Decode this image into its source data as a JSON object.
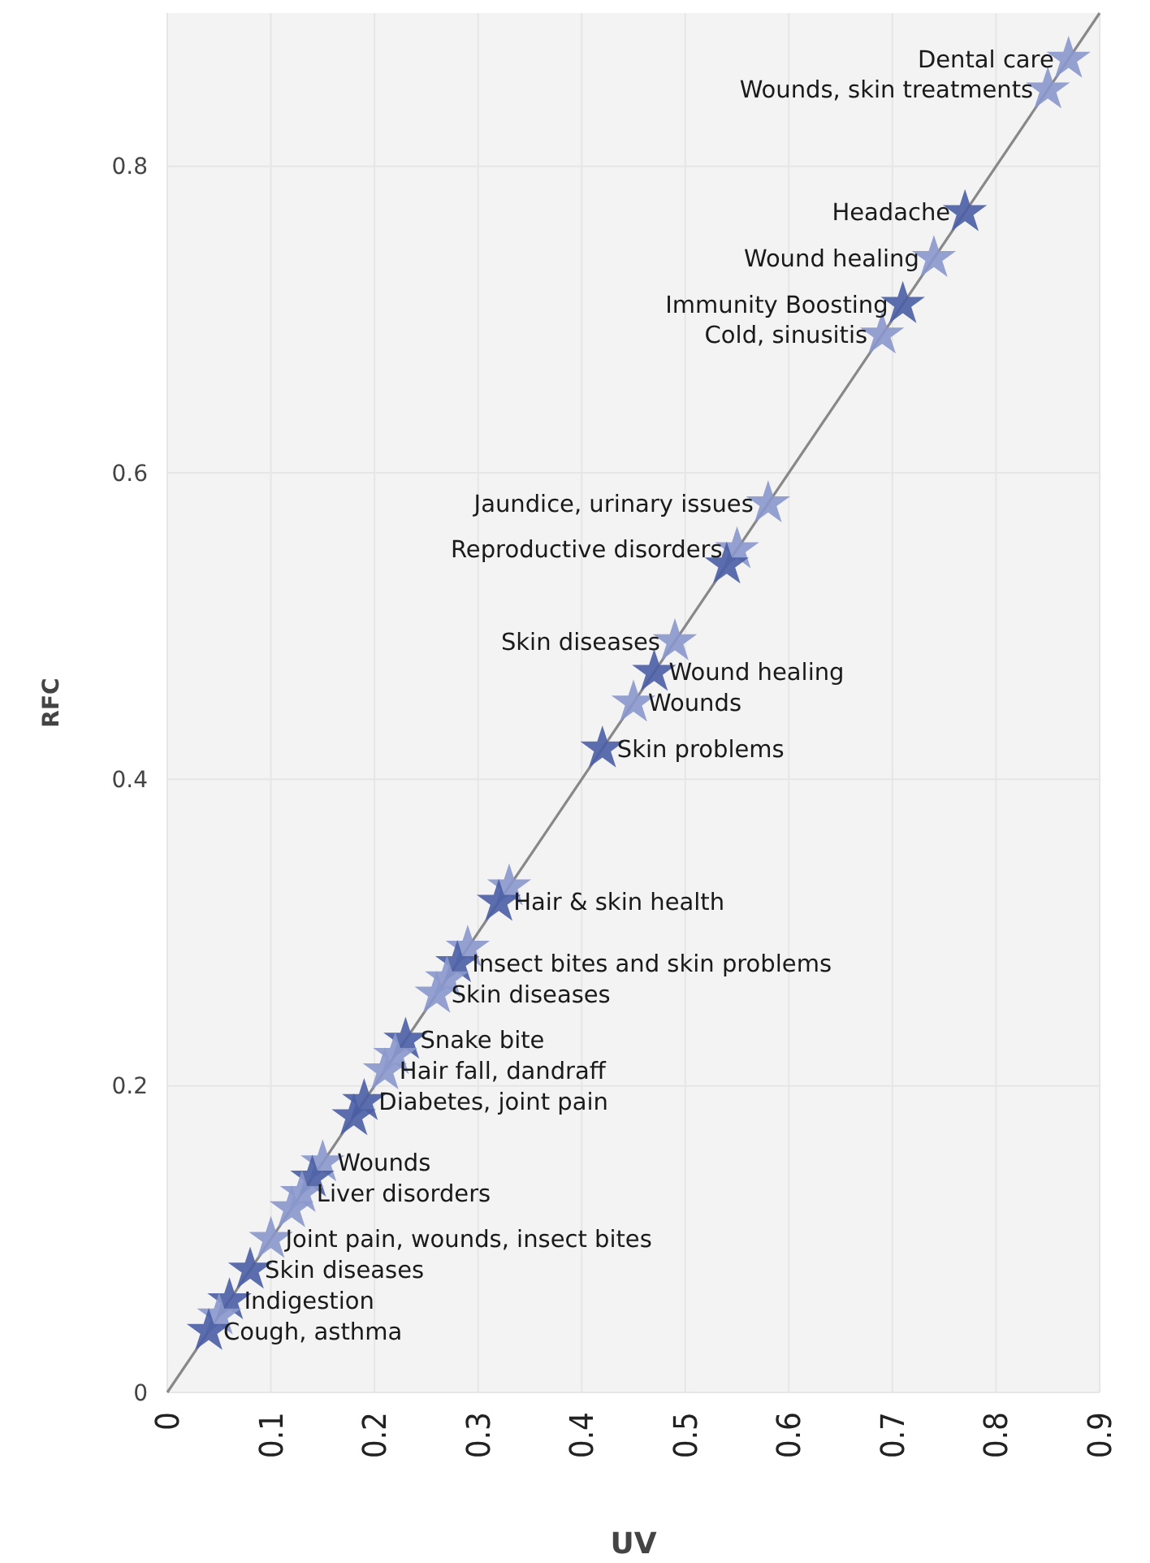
{
  "chart_data": {
    "type": "scatter",
    "xlabel": "UV",
    "ylabel": "RFC",
    "xlim": [
      0,
      0.9
    ],
    "ylim": [
      0,
      0.9
    ],
    "xticks": [
      0,
      0.1,
      0.2,
      0.3,
      0.4,
      0.5,
      0.6,
      0.7,
      0.8,
      0.9
    ],
    "yticks": [
      0,
      0.2,
      0.4,
      0.6,
      0.8
    ],
    "grid": true,
    "marker": "star",
    "series": [
      {
        "type": "line",
        "color": "#888888",
        "x": [
          0,
          0.9
        ],
        "values": [
          0,
          0.9
        ],
        "marker": "none",
        "line_style": "solid"
      },
      {
        "x": [
          0.87,
          0.85,
          0.77,
          0.74,
          0.71,
          0.69,
          0.58,
          0.55,
          0.54,
          0.49,
          0.47,
          0.45,
          0.42,
          0.33,
          0.32,
          0.29,
          0.28,
          0.27,
          0.26,
          0.23,
          0.22,
          0.21,
          0.19,
          0.18,
          0.15,
          0.14,
          0.13,
          0.12,
          0.1,
          0.08,
          0.06,
          0.05,
          0.04
        ],
        "values": [
          0.87,
          0.85,
          0.77,
          0.74,
          0.71,
          0.69,
          0.58,
          0.55,
          0.54,
          0.49,
          0.47,
          0.45,
          0.42,
          0.33,
          0.32,
          0.29,
          0.28,
          0.27,
          0.26,
          0.23,
          0.22,
          0.21,
          0.19,
          0.18,
          0.15,
          0.14,
          0.13,
          0.12,
          0.1,
          0.08,
          0.06,
          0.05,
          0.04
        ],
        "colors": [
          "#8a98cc",
          "#8a98cc",
          "#4a5ea4",
          "#8a98cc",
          "#4a5ea4",
          "#8a98cc",
          "#8a98cc",
          "#8a98cc",
          "#4a5ea4",
          "#8a98cc",
          "#4a5ea4",
          "#8a98cc",
          "#4a5ea4",
          "#8a98cc",
          "#4a5ea4",
          "#8a98cc",
          "#4a5ea4",
          "#8a98cc",
          "#8a98cc",
          "#4a5ea4",
          "#8a98cc",
          "#8a98cc",
          "#4a5ea4",
          "#4a5ea4",
          "#8a98cc",
          "#4a5ea4",
          "#8a98cc",
          "#8a98cc",
          "#8a98cc",
          "#4a5ea4",
          "#4a5ea4",
          "#8a98cc",
          "#4a5ea4"
        ]
      }
    ],
    "annotations": [
      {
        "text": "Dental care",
        "x": 0.87,
        "y": 0.87
      },
      {
        "text": "Wounds, skin treatments",
        "x": 0.85,
        "y": 0.85
      },
      {
        "text": "Headache",
        "x": 0.77,
        "y": 0.77
      },
      {
        "text": "Wound healing",
        "x": 0.74,
        "y": 0.74
      },
      {
        "text": "Immunity Boosting",
        "x": 0.71,
        "y": 0.71
      },
      {
        "text": "Cold, sinusitis",
        "x": 0.69,
        "y": 0.69
      },
      {
        "text": "Jaundice, urinary issues",
        "x": 0.58,
        "y": 0.58
      },
      {
        "text": "Reproductive disorders",
        "x": 0.55,
        "y": 0.55
      },
      {
        "text": "Skin diseases",
        "x": 0.49,
        "y": 0.49
      },
      {
        "text": "Wound healing",
        "x": 0.47,
        "y": 0.47
      },
      {
        "text": "Wounds",
        "x": 0.45,
        "y": 0.45
      },
      {
        "text": "Skin problems",
        "x": 0.42,
        "y": 0.42
      },
      {
        "text": "Hair & skin health",
        "x": 0.32,
        "y": 0.32
      },
      {
        "text": "Insect bites and skin problems",
        "x": 0.28,
        "y": 0.28
      },
      {
        "text": "Skin diseases",
        "x": 0.26,
        "y": 0.26
      },
      {
        "text": "Snake bite",
        "x": 0.23,
        "y": 0.23
      },
      {
        "text": "Hair fall, dandraff",
        "x": 0.21,
        "y": 0.21
      },
      {
        "text": "Diabetes, joint pain",
        "x": 0.19,
        "y": 0.19
      },
      {
        "text": "Wounds",
        "x": 0.15,
        "y": 0.15
      },
      {
        "text": "Liver disorders",
        "x": 0.13,
        "y": 0.13
      },
      {
        "text": "Joint pain, wounds, insect bites",
        "x": 0.1,
        "y": 0.1
      },
      {
        "text": "Skin diseases",
        "x": 0.08,
        "y": 0.08
      },
      {
        "text": "Indigestion",
        "x": 0.06,
        "y": 0.06
      },
      {
        "text": "Cough, asthma",
        "x": 0.04,
        "y": 0.04
      }
    ]
  }
}
